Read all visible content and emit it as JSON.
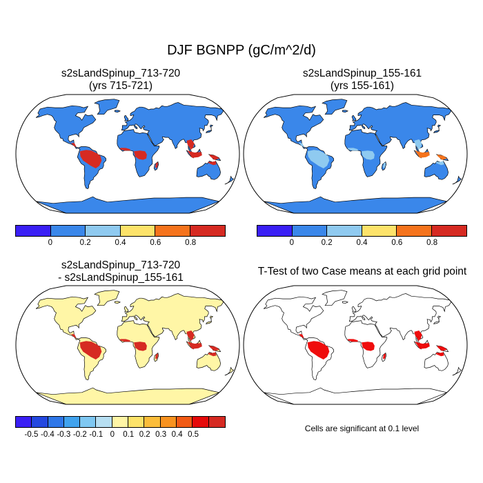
{
  "figure": {
    "title": "DJF BGNPP (gC/m^2/d)"
  },
  "panels": [
    {
      "id": "case1",
      "title_line1": "s2sLandSpinup_713-720",
      "title_line2": "(yrs 715-721)"
    },
    {
      "id": "case2",
      "title_line1": "s2sLandSpinup_155-161",
      "title_line2": "(yrs 155-161)"
    },
    {
      "id": "difference",
      "title_line1": "s2sLandSpinup_713-720",
      "title_line2": "- s2sLandSpinup_155-161"
    },
    {
      "id": "ttest",
      "title_line1": "T-Test of two Case means at each grid point",
      "title_line2": ""
    }
  ],
  "colorbars": {
    "absolute": {
      "colors": [
        "#3a1ff5",
        "#3a87ea",
        "#8fcaf0",
        "#fde36a",
        "#f5731c",
        "#d62a22"
      ],
      "labels": [
        "0",
        "0.2",
        "0.4",
        "0.6",
        "0.8"
      ]
    },
    "difference": {
      "colors": [
        "#3a1ff5",
        "#2448e0",
        "#2f77e8",
        "#41a3ee",
        "#7fc8f2",
        "#b7dff2",
        "#fff6a6",
        "#fde36a",
        "#fbbd3a",
        "#f7921f",
        "#f25a14",
        "#e60a0a",
        "#d62a22"
      ],
      "labels": [
        "-0.5",
        "-0.4",
        "-0.3",
        "-0.2",
        "-0.1",
        "0",
        "0.1",
        "0.2",
        "0.3",
        "0.4",
        "0.5"
      ]
    }
  },
  "colors": {
    "ocean": "#ffffff",
    "coastline": "#000000",
    "abs_land_base": "#3a87ea",
    "diff_land_base": "#fff6a6",
    "ttest_significant": "#ee0000"
  },
  "ttest_note": "Cells are significant at 0.1 level"
}
